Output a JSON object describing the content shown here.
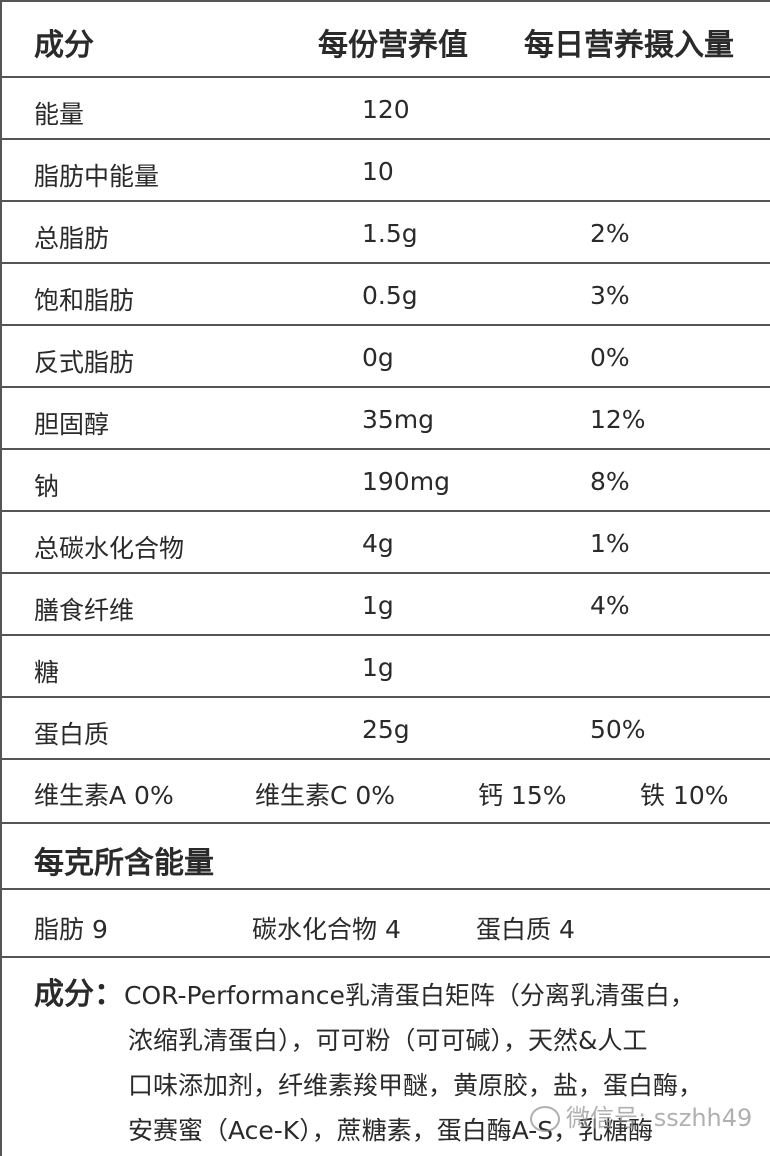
{
  "header": {
    "col1": "成分",
    "col2": "每份营养值",
    "col3": "每日营养摄入量"
  },
  "rows": [
    {
      "name": "能量",
      "value": "120",
      "dv": ""
    },
    {
      "name": "脂肪中能量",
      "value": "10",
      "dv": ""
    },
    {
      "name": "总脂肪",
      "value": "1.5g",
      "dv": "2%"
    },
    {
      "name": "饱和脂肪",
      "value": "0.5g",
      "dv": "3%"
    },
    {
      "name": "反式脂肪",
      "value": "0g",
      "dv": "0%"
    },
    {
      "name": "胆固醇",
      "value": "35mg",
      "dv": "12%"
    },
    {
      "name": "钠",
      "value": "190mg",
      "dv": "8%"
    },
    {
      "name": "总碳水化合物",
      "value": "4g",
      "dv": "1%"
    },
    {
      "name": "膳食纤维",
      "value": "1g",
      "dv": "4%"
    },
    {
      "name": "糖",
      "value": "1g",
      "dv": ""
    },
    {
      "name": "蛋白质",
      "value": "25g",
      "dv": "50%"
    }
  ],
  "vitamins": [
    "维生素A 0%",
    "维生素C 0%",
    "钙 15%",
    "铁 10%"
  ],
  "energy_per_gram": {
    "title": "每克所含能量",
    "items": [
      "脂肪 9",
      "碳水化合物 4",
      "蛋白质 4"
    ]
  },
  "ingredients": {
    "label": "成分：",
    "lines": [
      "COR-Performance乳清蛋白矩阵（分离乳清蛋白，",
      "浓缩乳清蛋白），可可粉（可可碱），天然&人工",
      "口味添加剂，纤维素羧甲醚，黄原胶，盐，蛋白酶，",
      "安赛蜜（Ace-K），蔗糖素，蛋白酶A-S，乳糖酶"
    ]
  },
  "watermark": "微信号: sszhh49"
}
